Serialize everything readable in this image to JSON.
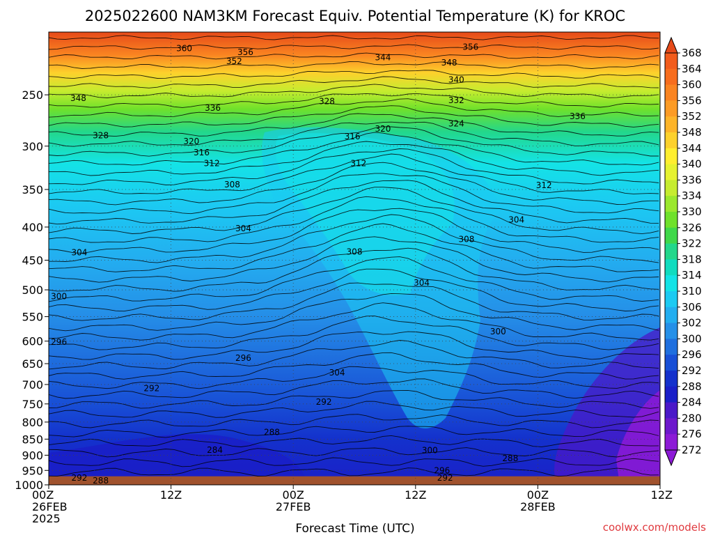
{
  "chart_data": {
    "type": "heatmap",
    "title": "2025022600 NAM3KM Forecast Equiv. Potential Temperature (K) for KROC",
    "xlabel": "Forecast Time (UTC)",
    "ylabel": "",
    "y_scale": "log",
    "y_ticks": [
      "250",
      "300",
      "350",
      "400",
      "450",
      "500",
      "550",
      "600",
      "650",
      "700",
      "750",
      "800",
      "850",
      "900",
      "950",
      "1000"
    ],
    "x_ticks": [
      {
        "lines": [
          "00Z",
          "26FEB",
          "2025"
        ]
      },
      {
        "lines": [
          "12Z"
        ]
      },
      {
        "lines": [
          "00Z",
          "27FEB"
        ]
      },
      {
        "lines": [
          "12Z"
        ]
      },
      {
        "lines": [
          "00Z",
          "28FEB"
        ]
      },
      {
        "lines": [
          "12Z"
        ]
      }
    ],
    "xlim_hours": [
      0,
      60
    ],
    "ylim_hpa": [
      1000,
      200
    ],
    "grid": true,
    "colorbar": {
      "levels": [
        "368",
        "364",
        "360",
        "356",
        "352",
        "348",
        "344",
        "340",
        "336",
        "334",
        "330",
        "326",
        "322",
        "318",
        "314",
        "310",
        "306",
        "302",
        "300",
        "296",
        "292",
        "288",
        "284",
        "280",
        "276",
        "272"
      ],
      "colors": [
        "#e64a19",
        "#f25c1c",
        "#f76d1e",
        "#fa8421",
        "#fc9b25",
        "#fdb429",
        "#fdd12c",
        "#ffee2f",
        "#e6f230",
        "#c6ec2f",
        "#9be82d",
        "#6fe12b",
        "#3fd84a",
        "#23d78b",
        "#11dcbf",
        "#14e3e6",
        "#1ccaf2",
        "#23aef0",
        "#2590e8",
        "#1f6fde",
        "#184fd6",
        "#1431cc",
        "#1a1fc8",
        "#4a18c8",
        "#6d18cc",
        "#8c1ad6"
      ]
    },
    "contour_labels": [
      {
        "text": "360",
        "hour": 13.3,
        "p": 212
      },
      {
        "text": "356",
        "hour": 19.3,
        "p": 215
      },
      {
        "text": "352",
        "hour": 18.2,
        "p": 222
      },
      {
        "text": "344",
        "hour": 32.8,
        "p": 219
      },
      {
        "text": "348",
        "hour": 39.3,
        "p": 223
      },
      {
        "text": "356",
        "hour": 41.4,
        "p": 211
      },
      {
        "text": "340",
        "hour": 40.0,
        "p": 237
      },
      {
        "text": "348",
        "hour": 2.9,
        "p": 253
      },
      {
        "text": "336",
        "hour": 16.1,
        "p": 262
      },
      {
        "text": "328",
        "hour": 27.3,
        "p": 256
      },
      {
        "text": "332",
        "hour": 40.0,
        "p": 255
      },
      {
        "text": "324",
        "hour": 40.0,
        "p": 277
      },
      {
        "text": "336",
        "hour": 51.9,
        "p": 270
      },
      {
        "text": "328",
        "hour": 5.1,
        "p": 289
      },
      {
        "text": "320",
        "hour": 14.0,
        "p": 295
      },
      {
        "text": "320",
        "hour": 32.8,
        "p": 282
      },
      {
        "text": "316",
        "hour": 29.8,
        "p": 290
      },
      {
        "text": "316",
        "hour": 15.0,
        "p": 307
      },
      {
        "text": "312",
        "hour": 16.0,
        "p": 319
      },
      {
        "text": "312",
        "hour": 30.4,
        "p": 319
      },
      {
        "text": "308",
        "hour": 18.0,
        "p": 344
      },
      {
        "text": "312",
        "hour": 48.6,
        "p": 345
      },
      {
        "text": "304",
        "hour": 19.1,
        "p": 402
      },
      {
        "text": "304",
        "hour": 45.9,
        "p": 390
      },
      {
        "text": "308",
        "hour": 41.0,
        "p": 418
      },
      {
        "text": "308",
        "hour": 30.0,
        "p": 437
      },
      {
        "text": "304",
        "hour": 3.0,
        "p": 438
      },
      {
        "text": "300",
        "hour": 1.0,
        "p": 512
      },
      {
        "text": "304",
        "hour": 36.6,
        "p": 488
      },
      {
        "text": "300",
        "hour": 44.1,
        "p": 580
      },
      {
        "text": "296",
        "hour": 1.0,
        "p": 602
      },
      {
        "text": "296",
        "hour": 19.1,
        "p": 637
      },
      {
        "text": "304",
        "hour": 28.3,
        "p": 671
      },
      {
        "text": "292",
        "hour": 10.1,
        "p": 710
      },
      {
        "text": "292",
        "hour": 27.0,
        "p": 745
      },
      {
        "text": "288",
        "hour": 21.9,
        "p": 830
      },
      {
        "text": "284",
        "hour": 16.3,
        "p": 884
      },
      {
        "text": "300",
        "hour": 37.4,
        "p": 885
      },
      {
        "text": "296",
        "hour": 38.6,
        "p": 950
      },
      {
        "text": "292",
        "hour": 38.9,
        "p": 975
      },
      {
        "text": "288",
        "hour": 45.3,
        "p": 910
      },
      {
        "text": "292",
        "hour": 3.0,
        "p": 975
      },
      {
        "text": "288",
        "hour": 5.1,
        "p": 985
      }
    ],
    "ground_color": "#a0522d"
  },
  "footer": {
    "credit": "coolwx.com/models"
  }
}
